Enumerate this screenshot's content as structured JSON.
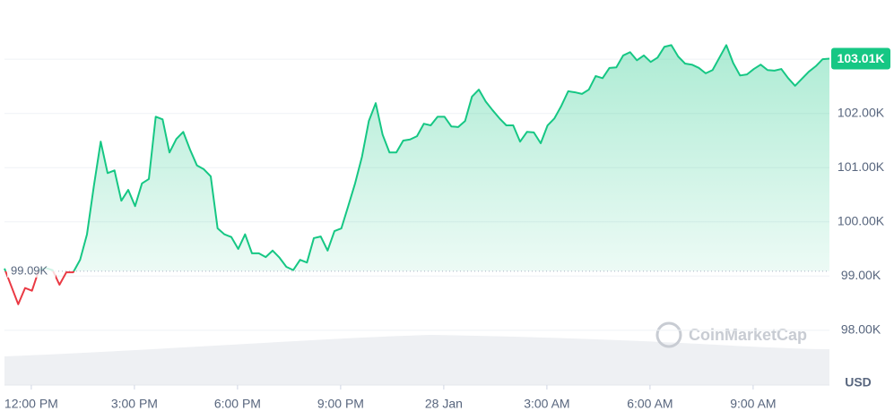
{
  "chart_data": {
    "type": "line",
    "y_axis_label": "USD",
    "watermark": "CoinMarketCap",
    "color_up": "#16c784",
    "color_down": "#ea3943",
    "grid": true,
    "baseline": {
      "value": 99.09,
      "label": "99.09K"
    },
    "last_price": {
      "value": 103.01,
      "label": "103.01K"
    },
    "xlim": [
      -0.78,
      23.22
    ],
    "xticks": [
      {
        "value": 0,
        "label": "12:00 PM"
      },
      {
        "value": 3,
        "label": "3:00 PM"
      },
      {
        "value": 6,
        "label": "6:00 PM"
      },
      {
        "value": 9,
        "label": "9:00 PM"
      },
      {
        "value": 12,
        "label": "28 Jan"
      },
      {
        "value": 15,
        "label": "3:00 AM"
      },
      {
        "value": 18,
        "label": "6:00 AM"
      },
      {
        "value": 21,
        "label": "9:00 AM"
      }
    ],
    "ylim": [
      96.99,
      104.01
    ],
    "yticks": [
      {
        "value": 98,
        "label": "98.00K"
      },
      {
        "value": 99,
        "label": "99.00K"
      },
      {
        "value": 100,
        "label": "100.00K"
      },
      {
        "value": 101,
        "label": "101.00K"
      },
      {
        "value": 102,
        "label": "102.00K"
      },
      {
        "value": 103,
        "label": "103.00K"
      }
    ],
    "x": [
      -0.78,
      -0.58,
      -0.38,
      -0.18,
      0.02,
      0.22,
      0.42,
      0.62,
      0.82,
      1.02,
      1.22,
      1.42,
      1.62,
      1.82,
      2.02,
      2.22,
      2.42,
      2.62,
      2.82,
      3.02,
      3.22,
      3.42,
      3.62,
      3.82,
      4.02,
      4.22,
      4.42,
      4.62,
      4.82,
      5.02,
      5.22,
      5.42,
      5.62,
      5.82,
      6.02,
      6.22,
      6.42,
      6.62,
      6.82,
      7.02,
      7.22,
      7.42,
      7.62,
      7.82,
      8.02,
      8.22,
      8.42,
      8.62,
      8.82,
      9.02,
      9.22,
      9.42,
      9.62,
      9.82,
      10.02,
      10.22,
      10.42,
      10.62,
      10.82,
      11.02,
      11.22,
      11.42,
      11.62,
      11.82,
      12.02,
      12.22,
      12.42,
      12.62,
      12.82,
      13.02,
      13.22,
      13.42,
      13.62,
      13.82,
      14.02,
      14.22,
      14.42,
      14.62,
      14.82,
      15.02,
      15.22,
      15.42,
      15.62,
      15.82,
      16.02,
      16.22,
      16.42,
      16.62,
      16.82,
      17.02,
      17.22,
      17.42,
      17.62,
      17.82,
      18.02,
      18.22,
      18.42,
      18.62,
      18.82,
      19.02,
      19.22,
      19.42,
      19.62,
      19.82,
      20.02,
      20.22,
      20.42,
      20.62,
      20.82,
      21.02,
      21.22,
      21.42,
      21.62,
      21.82,
      22.02,
      22.22,
      22.42,
      22.62,
      22.82,
      23.02,
      23.22
    ],
    "values": [
      99.14,
      98.81,
      98.48,
      98.78,
      98.73,
      99.11,
      99.15,
      99.11,
      98.84,
      99.07,
      99.07,
      99.3,
      99.77,
      100.66,
      101.48,
      100.9,
      100.95,
      100.39,
      100.59,
      100.29,
      100.71,
      100.79,
      101.94,
      101.89,
      101.28,
      101.53,
      101.66,
      101.33,
      101.04,
      100.97,
      100.84,
      99.88,
      99.77,
      99.72,
      99.5,
      99.77,
      99.42,
      99.42,
      99.35,
      99.47,
      99.34,
      99.17,
      99.11,
      99.3,
      99.25,
      99.7,
      99.73,
      99.47,
      99.83,
      99.88,
      100.29,
      100.71,
      101.2,
      101.86,
      102.19,
      101.61,
      101.28,
      101.28,
      101.5,
      101.52,
      101.58,
      101.81,
      101.78,
      101.94,
      101.94,
      101.76,
      101.75,
      101.86,
      102.31,
      102.44,
      102.22,
      102.06,
      101.91,
      101.78,
      101.78,
      101.48,
      101.66,
      101.65,
      101.45,
      101.78,
      101.91,
      102.14,
      102.41,
      102.39,
      102.36,
      102.44,
      102.69,
      102.65,
      102.84,
      102.85,
      103.07,
      103.13,
      102.98,
      103.07,
      102.95,
      103.03,
      103.23,
      103.26,
      103.05,
      102.92,
      102.9,
      102.84,
      102.74,
      102.8,
      103.03,
      103.26,
      102.93,
      102.7,
      102.72,
      102.82,
      102.9,
      102.8,
      102.79,
      102.82,
      102.65,
      102.51,
      102.64,
      102.77,
      102.87,
      103.0,
      103.01
    ]
  }
}
